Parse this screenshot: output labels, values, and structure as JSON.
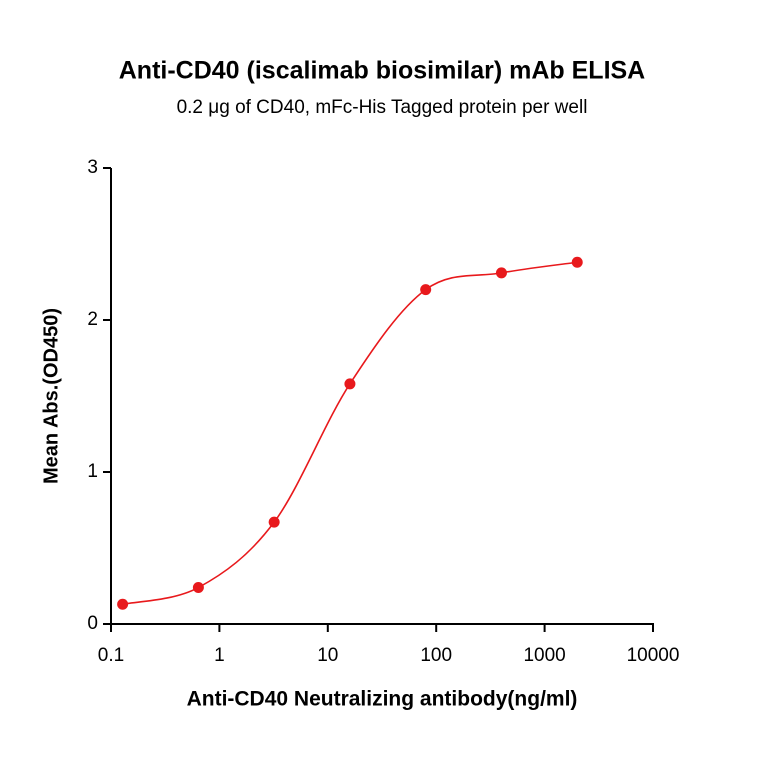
{
  "chart_data": {
    "type": "scatter",
    "title": "Anti-CD40 (iscalimab biosimilar) mAb ELISA",
    "subtitle": "0.2 μg of CD40, mFc-His Tagged protein per well",
    "x_label": "Anti-CD40 Neutralizing antibody(ng/ml)",
    "y_label": "Mean Abs.(OD450)",
    "x_scale": "log",
    "x": [
      0.128,
      0.64,
      3.2,
      16,
      80,
      400,
      2000
    ],
    "values": [
      0.13,
      0.24,
      0.67,
      1.58,
      2.2,
      2.31,
      2.38
    ],
    "color": "#e8191c",
    "fit_line": true,
    "xlim": [
      0.1,
      10000
    ],
    "xticks": [
      0.1,
      1,
      10,
      100,
      1000,
      10000
    ],
    "ylim": [
      0,
      3
    ],
    "yticks": [
      0,
      1,
      2,
      3
    ]
  }
}
